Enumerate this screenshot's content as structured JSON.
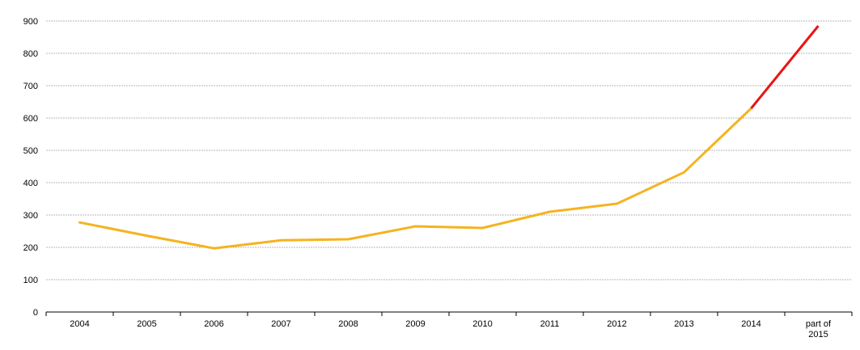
{
  "chart_data": {
    "type": "line",
    "categories": [
      "2004",
      "2005",
      "2006",
      "2007",
      "2008",
      "2009",
      "2010",
      "2011",
      "2012",
      "2013",
      "2014",
      "part of 2015"
    ],
    "category_label_lines": [
      [
        "2004"
      ],
      [
        "2005"
      ],
      [
        "2006"
      ],
      [
        "2007"
      ],
      [
        "2008"
      ],
      [
        "2009"
      ],
      [
        "2010"
      ],
      [
        "2011"
      ],
      [
        "2012"
      ],
      [
        "2013"
      ],
      [
        "2014"
      ],
      [
        "part of",
        "2015"
      ]
    ],
    "series": [
      {
        "values": [
          277,
          236,
          197,
          222,
          225,
          265,
          260,
          310,
          335,
          432,
          630,
          885
        ],
        "color": "#f5b320",
        "highlight_last_segment_color": "#e81414"
      }
    ],
    "yticks": [
      0,
      100,
      200,
      300,
      400,
      500,
      600,
      700,
      800,
      900
    ],
    "ylim": [
      0,
      900
    ],
    "title": "",
    "xlabel": "",
    "ylabel": "",
    "grid": true,
    "legend": "none"
  }
}
